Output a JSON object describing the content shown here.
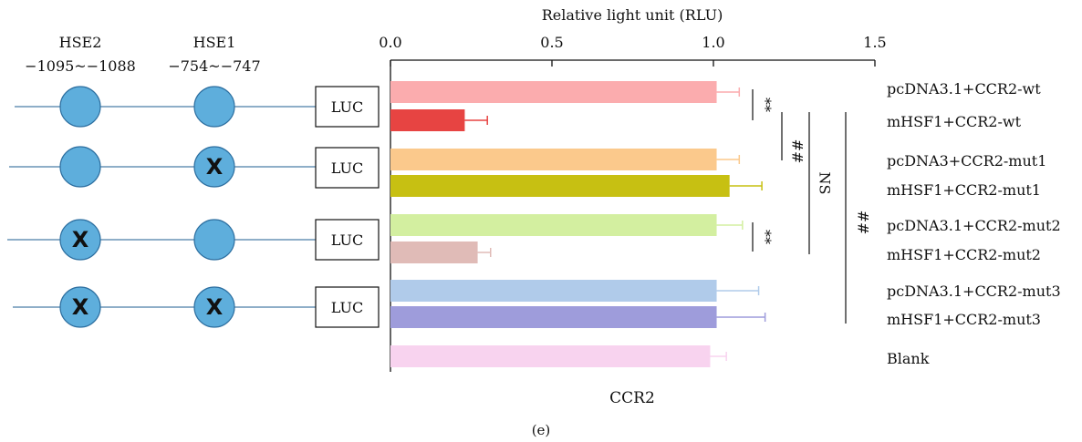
{
  "chart_data": {
    "type": "bar",
    "orientation": "horizontal",
    "title": "Relative light unit (RLU)",
    "xlabel": "CCR2",
    "panel_label": "(e)",
    "xlim": [
      0,
      1.5
    ],
    "xticks": [
      "0.0",
      "0.5",
      "1.0",
      "1.5"
    ],
    "categories": [
      "pcDNA3.1+CCR2-wt",
      "mHSF1+CCR2-wt",
      "pcDNA3+CCR2-mut1",
      "mHSF1+CCR2-mut1",
      "pcDNA3.1+CCR2-mut2",
      "mHSF1+CCR2-mut2",
      "pcDNA3.1+CCR2-mut3",
      "mHSF1+CCR2-mut3",
      "Blank"
    ],
    "values": [
      1.01,
      0.23,
      1.01,
      1.05,
      1.01,
      0.27,
      1.01,
      1.01,
      0.99
    ],
    "errors": [
      0.07,
      0.07,
      0.07,
      0.1,
      0.08,
      0.04,
      0.13,
      0.15,
      0.05
    ],
    "colors": [
      "#fbacae",
      "#e74442",
      "#fbc98c",
      "#c7c012",
      "#d3efa0",
      "#e0bbb7",
      "#b0cbea",
      "#9e9cdb",
      "#f8d3ef"
    ],
    "significance": [
      {
        "label": "**",
        "between": [
          0,
          1
        ]
      },
      {
        "label": "##",
        "between": [
          0,
          2
        ]
      },
      {
        "label": "NS",
        "between": [
          0,
          4
        ]
      },
      {
        "label": "##",
        "between": [
          0,
          7
        ]
      },
      {
        "label": "**",
        "between": [
          4,
          5
        ]
      }
    ]
  },
  "schematic": {
    "site_labels": [
      {
        "name": "HSE2",
        "range": "−1095~−1088"
      },
      {
        "name": "HSE1",
        "range": "−754~−747"
      }
    ],
    "constructs": [
      {
        "reporter": "LUC",
        "hse2_mutated": false,
        "hse1_mutated": false
      },
      {
        "reporter": "LUC",
        "hse2_mutated": false,
        "hse1_mutated": true
      },
      {
        "reporter": "LUC",
        "hse2_mutated": true,
        "hse1_mutated": false
      },
      {
        "reporter": "LUC",
        "hse2_mutated": true,
        "hse1_mutated": true
      }
    ],
    "mutation_mark": "X",
    "site_color": "#5eaedc"
  }
}
